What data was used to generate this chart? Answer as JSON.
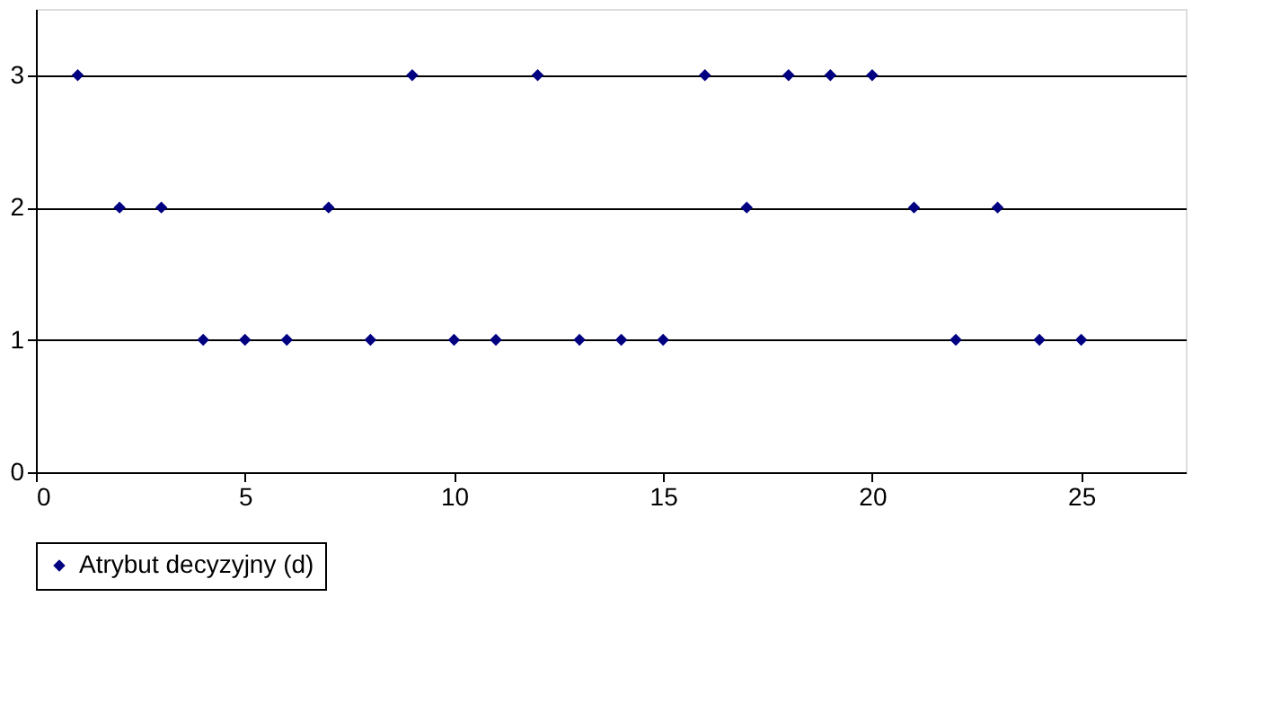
{
  "chart_data": {
    "type": "scatter",
    "x": [
      1,
      2,
      3,
      4,
      5,
      6,
      7,
      8,
      9,
      10,
      11,
      12,
      13,
      14,
      15,
      16,
      17,
      18,
      19,
      20,
      21,
      22,
      23,
      24,
      25
    ],
    "series": [
      {
        "name": "Atrybut decyzyjny (d)",
        "color": "#000080",
        "values": [
          3,
          2,
          2,
          1,
          1,
          1,
          2,
          1,
          3,
          1,
          1,
          3,
          1,
          1,
          1,
          3,
          2,
          3,
          3,
          3,
          2,
          1,
          2,
          1,
          1
        ]
      }
    ],
    "xlim": [
      0,
      27.5
    ],
    "xticks": [
      0,
      5,
      10,
      15,
      20,
      25
    ],
    "ylim": [
      0,
      3.5
    ],
    "yticks": [
      0,
      1,
      2,
      3
    ],
    "grid": "y",
    "legend": "bottom",
    "marker": "diamond"
  }
}
